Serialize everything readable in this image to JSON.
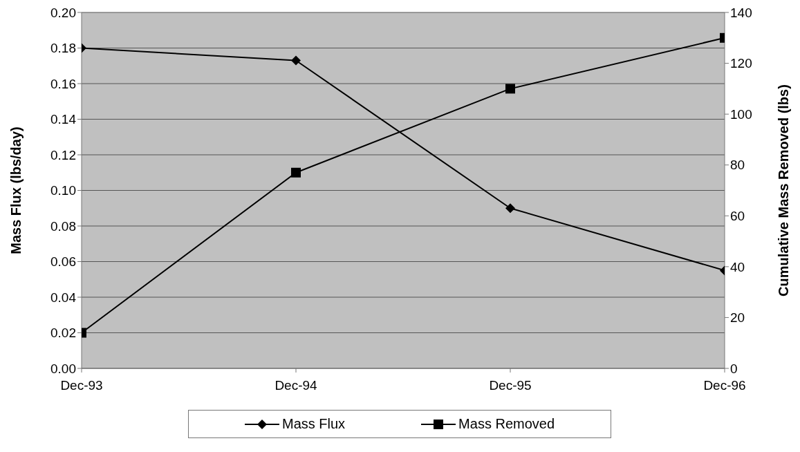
{
  "chart_data": {
    "type": "line",
    "categories": [
      "Dec-93",
      "Dec-94",
      "Dec-95",
      "Dec-96"
    ],
    "series": [
      {
        "name": "Mass Flux",
        "color": "#000000",
        "values": [
          0.18,
          0.173,
          0.09,
          0.055
        ],
        "marker": "diamond"
      },
      {
        "name": "Mass Removed",
        "color": "#000000",
        "values": [
          14,
          77,
          110,
          130
        ],
        "axis": "y2",
        "marker": "square"
      }
    ],
    "ylabel": "Mass Flux (lbs/day)",
    "y2label": "Cumulative Mass Removed (lbs)",
    "ylim": [
      0,
      0.2
    ],
    "yticks": [
      {
        "value": 0,
        "label": "0.00"
      },
      {
        "value": 0.02,
        "label": "0.02"
      },
      {
        "value": 0.04,
        "label": "0.04"
      },
      {
        "value": 0.06,
        "label": "0.06"
      },
      {
        "value": 0.08,
        "label": "0.08"
      },
      {
        "value": 0.1,
        "label": "0.10"
      },
      {
        "value": 0.12,
        "label": "0.12"
      },
      {
        "value": 0.14,
        "label": "0.14"
      },
      {
        "value": 0.16,
        "label": "0.16"
      },
      {
        "value": 0.18,
        "label": "0.18"
      },
      {
        "value": 0.2,
        "label": "0.20"
      }
    ],
    "y2lim": [
      0,
      140
    ],
    "y2ticks": [
      0,
      20,
      40,
      60,
      80,
      100,
      120,
      140
    ],
    "grid": "y",
    "legend": "bottom",
    "line_style": "solid"
  }
}
